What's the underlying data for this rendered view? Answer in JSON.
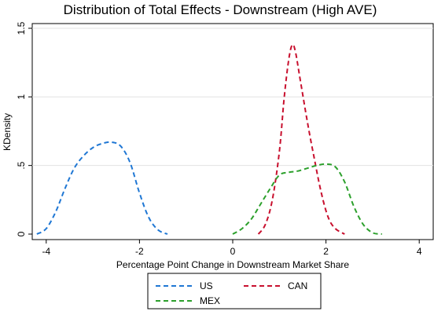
{
  "chart_data": {
    "type": "line",
    "title": "Distribution of Total Effects - Downstream (High AVE)",
    "xlabel": "Percentage Point Change in Downstream Market Share",
    "ylabel": "KDensity",
    "xlim": [
      -4.3,
      4.3
    ],
    "ylim": [
      0,
      1.5
    ],
    "xticks": [
      -4,
      -2,
      0,
      2,
      4
    ],
    "xtick_labels": [
      "-4",
      "-2",
      "0",
      "2",
      "4"
    ],
    "yticks": [
      0,
      0.5,
      1,
      1.5
    ],
    "ytick_labels": [
      "0",
      ".5",
      "1",
      "1.5"
    ],
    "grid": "horizontal",
    "legend_position": "bottom",
    "series": [
      {
        "name": "US",
        "color": "#1f77d4",
        "x": [
          -4.2,
          -4.0,
          -3.8,
          -3.6,
          -3.4,
          -3.2,
          -3.0,
          -2.8,
          -2.6,
          -2.4,
          -2.2,
          -2.0,
          -1.8,
          -1.6,
          -1.4
        ],
        "y": [
          0.0,
          0.04,
          0.16,
          0.33,
          0.48,
          0.57,
          0.63,
          0.66,
          0.67,
          0.64,
          0.52,
          0.3,
          0.12,
          0.03,
          0.0
        ]
      },
      {
        "name": "CAN",
        "color": "#c8102e",
        "x": [
          0.55,
          0.7,
          0.85,
          1.0,
          1.1,
          1.2,
          1.28,
          1.35,
          1.45,
          1.6,
          1.75,
          1.9,
          2.05,
          2.2,
          2.4
        ],
        "y": [
          0.0,
          0.07,
          0.25,
          0.6,
          0.98,
          1.27,
          1.38,
          1.32,
          1.12,
          0.82,
          0.55,
          0.3,
          0.12,
          0.04,
          0.0
        ]
      },
      {
        "name": "MEX",
        "color": "#2ca02c",
        "x": [
          0.0,
          0.2,
          0.4,
          0.6,
          0.8,
          1.0,
          1.2,
          1.4,
          1.6,
          1.8,
          2.0,
          2.2,
          2.4,
          2.6,
          2.8,
          3.0,
          3.2
        ],
        "y": [
          0.0,
          0.04,
          0.11,
          0.22,
          0.33,
          0.43,
          0.45,
          0.46,
          0.48,
          0.5,
          0.51,
          0.49,
          0.38,
          0.2,
          0.07,
          0.01,
          0.0
        ]
      }
    ]
  }
}
